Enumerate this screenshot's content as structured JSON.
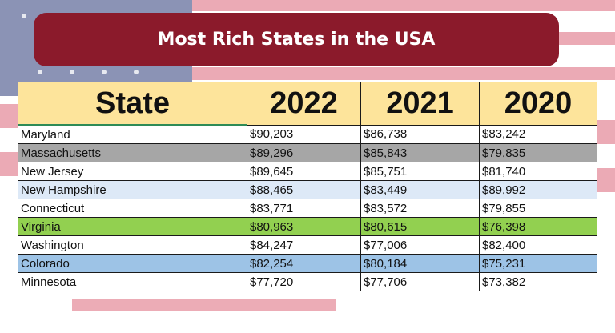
{
  "title": "Most Rich States in the USA",
  "table": {
    "columns": [
      "State",
      "2022",
      "2021",
      "2020"
    ],
    "rows": [
      [
        "Maryland",
        "$90,203",
        "$86,738",
        "$83,242"
      ],
      [
        "Massachusetts",
        "$89,296",
        "$85,843",
        "$79,835"
      ],
      [
        "New Jersey",
        "$89,645",
        "$85,751",
        "$81,740"
      ],
      [
        "New Hampshire",
        "$88,465",
        "$83,449",
        "$89,992"
      ],
      [
        "Connecticut",
        "$83,771",
        "$83,572",
        "$79,855"
      ],
      [
        "Virginia",
        "$80,963",
        "$80,615",
        "$76,398"
      ],
      [
        "Washington",
        "$84,247",
        "$77,006",
        "$82,400"
      ],
      [
        "Colorado",
        "$82,254",
        "$80,184",
        "$75,231"
      ],
      [
        "Minnesota",
        "$77,720",
        "$77,706",
        "$73,382"
      ]
    ]
  }
}
